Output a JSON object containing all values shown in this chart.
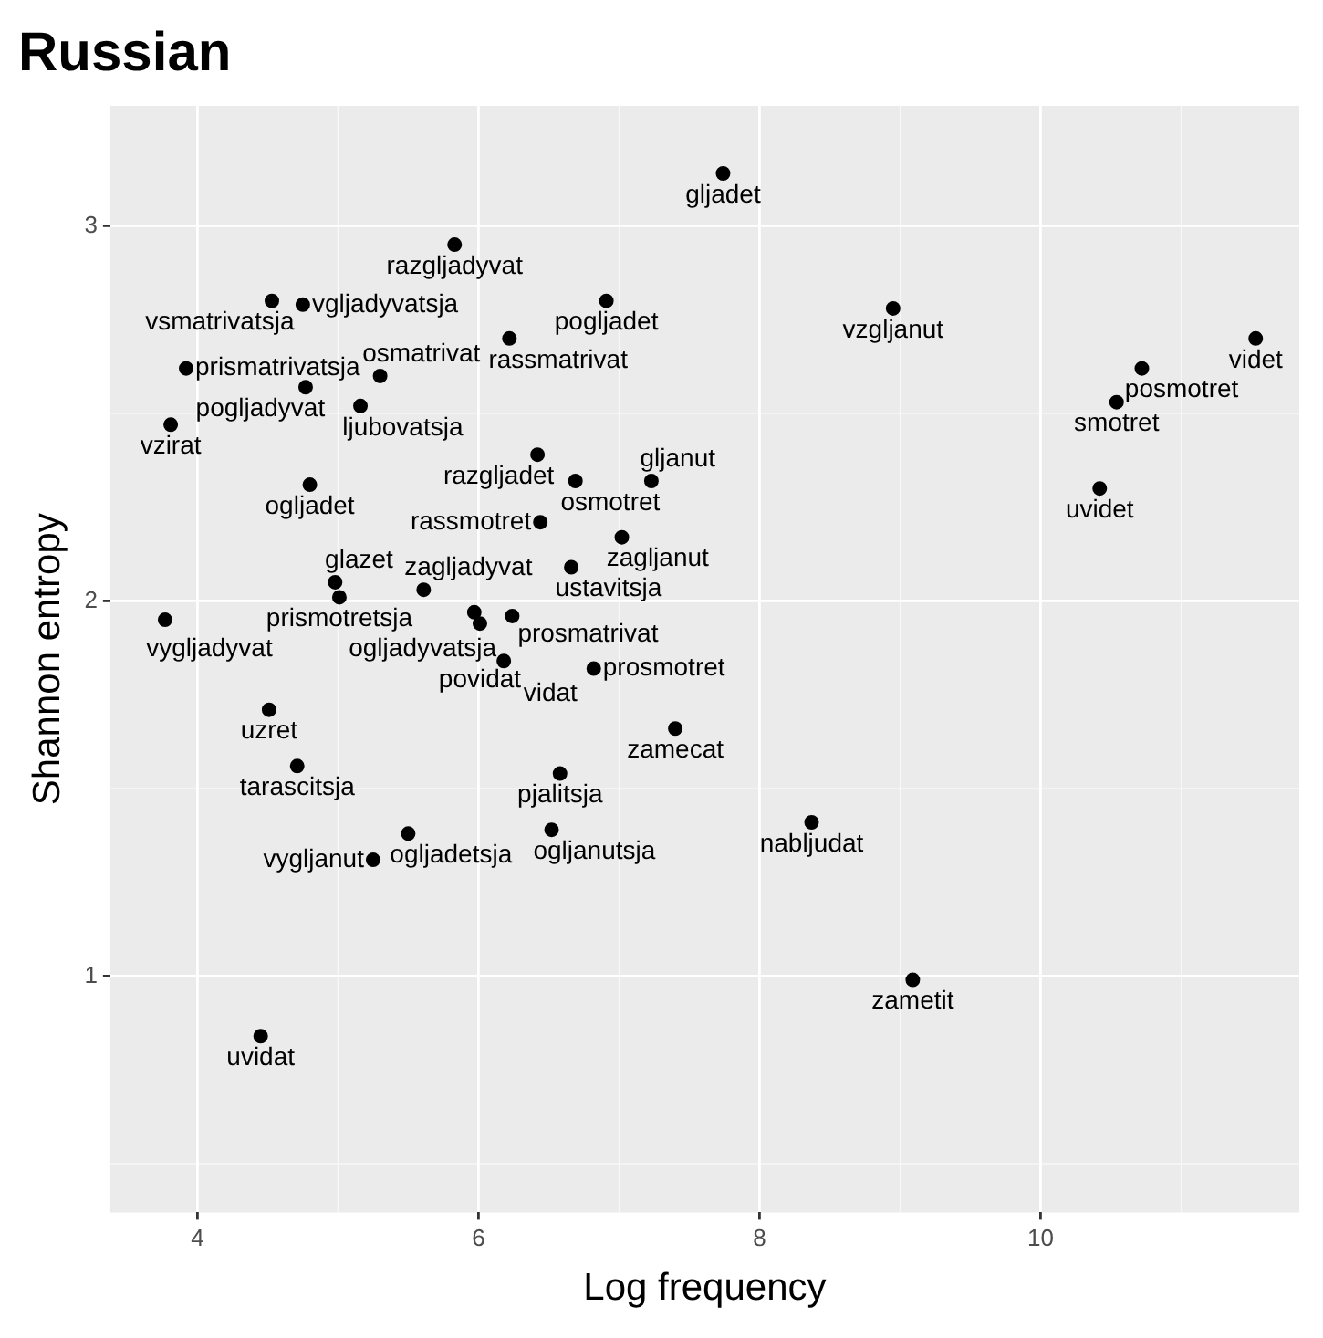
{
  "chart_data": {
    "type": "scatter",
    "title": "Russian",
    "xlabel": "Log frequency",
    "ylabel": "Shannon entropy",
    "x": [
      7.74,
      5.83,
      4.53,
      4.75,
      6.91,
      8.95,
      11.53,
      3.92,
      5.3,
      6.22,
      10.72,
      4.77,
      5.16,
      10.54,
      3.81,
      6.42,
      10.42,
      4.8,
      6.69,
      7.23,
      5.61,
      6.44,
      7.02,
      6.66,
      4.98,
      5.01,
      5.97,
      6.01,
      6.24,
      6.18,
      6.82,
      3.77,
      4.51,
      4.71,
      7.4,
      6.58,
      5.5,
      6.52,
      5.25,
      8.37,
      4.45,
      9.09
    ],
    "values": [
      3.14,
      2.95,
      2.8,
      2.79,
      2.8,
      2.78,
      2.7,
      2.62,
      2.6,
      2.7,
      2.62,
      2.57,
      2.52,
      2.53,
      2.47,
      2.39,
      2.3,
      2.31,
      2.32,
      2.32,
      2.03,
      2.21,
      2.17,
      2.09,
      2.05,
      2.01,
      1.97,
      1.94,
      1.96,
      1.84,
      1.82,
      1.95,
      1.71,
      1.56,
      1.66,
      1.54,
      1.38,
      1.39,
      1.31,
      1.41,
      0.84,
      0.99
    ],
    "value_labels": [
      "gljadet",
      "razgljadyvat",
      "vsmatrivatsja",
      "vgljadyvatsja",
      "pogljadet",
      "vzgljanut",
      "videt",
      "prismatrivatsja",
      "osmatrivat",
      "rassmatrivat",
      "posmotret",
      "pogljadyvat",
      "ljubovatsja",
      "smotret",
      "vzirat",
      "razgljadet",
      "uvidet",
      "ogljadet",
      "osmotret",
      "gljanut",
      "zagljadyvat",
      "rassmotret",
      "zagljanut",
      "ustavitsja",
      "glazet",
      "prismotretsja",
      "ogljadyvatsja",
      "povidat",
      "prosmatrivat",
      "vidat",
      "prosmotret",
      "vygljadyvat",
      "uzret",
      "tarascitsja",
      "zamecat",
      "pjalitsja",
      "ogljadetsja",
      "ogljanutsja",
      "vygljanut",
      "nabljudat",
      "uvidat",
      "zametit"
    ],
    "color": "#000000",
    "marker": "circle",
    "xlim": [
      3.38,
      11.84
    ],
    "ylim": [
      0.37,
      3.32
    ],
    "xticks": [
      4,
      6,
      8,
      10
    ],
    "yticks": [
      1,
      2,
      3
    ],
    "grid": true
  }
}
